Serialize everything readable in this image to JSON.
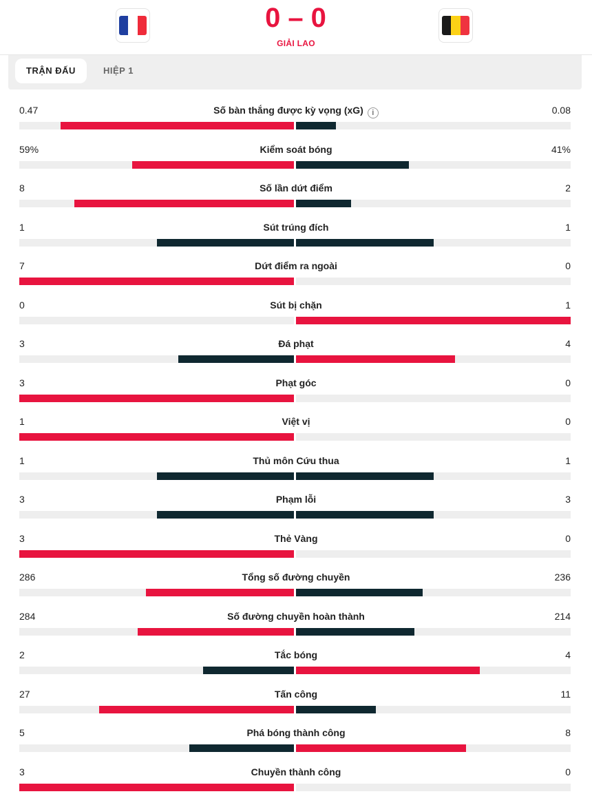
{
  "match": {
    "home_team": "France",
    "away_team": "Belgium",
    "home_score": "0",
    "score_separator": "–",
    "away_score": "0",
    "status": "GIẢI LAO"
  },
  "tabs": [
    {
      "label": "TRẬN ĐẤU",
      "active": true
    },
    {
      "label": "HIỆP 1",
      "active": false
    }
  ],
  "colors": {
    "winner": "#e8143f",
    "neutral": "#0f2830",
    "track": "#eeeeee",
    "accent": "#e8143f"
  },
  "stats": [
    {
      "label": "Số bàn thắng được kỳ vọng (xG)",
      "home": "0.47",
      "away": "0.08",
      "home_frac": 0.85,
      "away_frac": 0.145,
      "home_color": "winner",
      "away_color": "neutral",
      "info": true
    },
    {
      "label": "Kiểm soát bóng",
      "home": "59%",
      "away": "41%",
      "home_frac": 0.59,
      "away_frac": 0.41,
      "home_color": "winner",
      "away_color": "neutral"
    },
    {
      "label": "Số lần dứt điểm",
      "home": "8",
      "away": "2",
      "home_frac": 0.8,
      "away_frac": 0.2,
      "home_color": "winner",
      "away_color": "neutral"
    },
    {
      "label": "Sút trúng đích",
      "home": "1",
      "away": "1",
      "home_frac": 0.5,
      "away_frac": 0.5,
      "home_color": "neutral",
      "away_color": "neutral"
    },
    {
      "label": "Dứt điểm ra ngoài",
      "home": "7",
      "away": "0",
      "home_frac": 1.0,
      "away_frac": 0.0,
      "home_color": "winner",
      "away_color": "neutral"
    },
    {
      "label": "Sút bị chặn",
      "home": "0",
      "away": "1",
      "home_frac": 0.0,
      "away_frac": 1.0,
      "home_color": "neutral",
      "away_color": "winner"
    },
    {
      "label": "Đá phạt",
      "home": "3",
      "away": "4",
      "home_frac": 0.42,
      "away_frac": 0.58,
      "home_color": "neutral",
      "away_color": "winner"
    },
    {
      "label": "Phạt góc",
      "home": "3",
      "away": "0",
      "home_frac": 1.0,
      "away_frac": 0.0,
      "home_color": "winner",
      "away_color": "neutral"
    },
    {
      "label": "Việt vị",
      "home": "1",
      "away": "0",
      "home_frac": 1.0,
      "away_frac": 0.0,
      "home_color": "winner",
      "away_color": "neutral"
    },
    {
      "label": "Thủ môn Cứu thua",
      "home": "1",
      "away": "1",
      "home_frac": 0.5,
      "away_frac": 0.5,
      "home_color": "neutral",
      "away_color": "neutral"
    },
    {
      "label": "Phạm lỗi",
      "home": "3",
      "away": "3",
      "home_frac": 0.5,
      "away_frac": 0.5,
      "home_color": "neutral",
      "away_color": "neutral"
    },
    {
      "label": "Thẻ Vàng",
      "home": "3",
      "away": "0",
      "home_frac": 1.0,
      "away_frac": 0.0,
      "home_color": "winner",
      "away_color": "neutral"
    },
    {
      "label": "Tổng số đường chuyền",
      "home": "286",
      "away": "236",
      "home_frac": 0.54,
      "away_frac": 0.46,
      "home_color": "winner",
      "away_color": "neutral"
    },
    {
      "label": "Số đường chuyền hoàn thành",
      "home": "284",
      "away": "214",
      "home_frac": 0.57,
      "away_frac": 0.43,
      "home_color": "winner",
      "away_color": "neutral"
    },
    {
      "label": "Tắc bóng",
      "home": "2",
      "away": "4",
      "home_frac": 0.33,
      "away_frac": 0.67,
      "home_color": "neutral",
      "away_color": "winner"
    },
    {
      "label": "Tấn công",
      "home": "27",
      "away": "11",
      "home_frac": 0.71,
      "away_frac": 0.29,
      "home_color": "winner",
      "away_color": "neutral"
    },
    {
      "label": "Phá bóng thành công",
      "home": "5",
      "away": "8",
      "home_frac": 0.38,
      "away_frac": 0.62,
      "home_color": "neutral",
      "away_color": "winner"
    },
    {
      "label": "Chuyền thành công",
      "home": "3",
      "away": "0",
      "home_frac": 1.0,
      "away_frac": 0.0,
      "home_color": "winner",
      "away_color": "neutral"
    }
  ]
}
